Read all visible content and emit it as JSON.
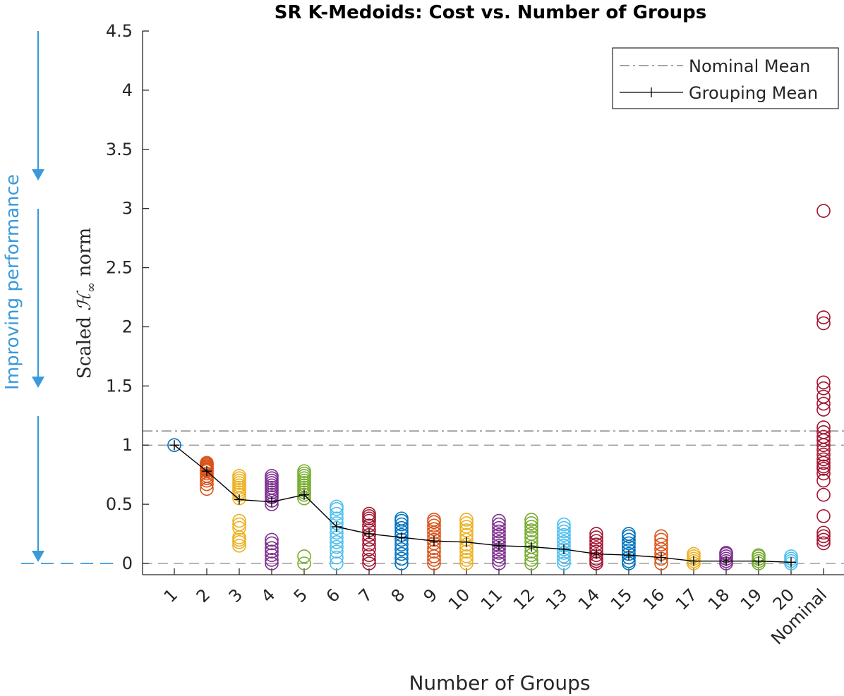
{
  "chart_data": {
    "type": "scatter",
    "title": "SR K-Medoids: Cost vs. Number of Groups",
    "xlabel": "Number of Groups",
    "ylabel_prefix": "Scaled",
    "ylabel_symbol": "ℋ",
    "ylabel_subscript": "∞",
    "ylabel_suffix": "norm",
    "categories": [
      "1",
      "2",
      "3",
      "4",
      "5",
      "6",
      "7",
      "8",
      "9",
      "10",
      "11",
      "12",
      "13",
      "14",
      "15",
      "16",
      "17",
      "18",
      "19",
      "20",
      "Nominal"
    ],
    "ylim": [
      -0.1,
      4.5
    ],
    "yticks": [
      0,
      0.5,
      1,
      1.5,
      2,
      2.5,
      3,
      3.5,
      4,
      4.5
    ],
    "ytick_labels": [
      "0",
      "0.5",
      "1",
      "1.5",
      "2",
      "2.5",
      "3",
      "3.5",
      "4",
      "4.5"
    ],
    "series_colors": [
      "#0072BD",
      "#D95319",
      "#EDB120",
      "#7E2F8E",
      "#77AC30",
      "#4DBEEE",
      "#A2142F"
    ],
    "scatter_points": [
      [
        1.0
      ],
      [
        0.63,
        0.67,
        0.7,
        0.72,
        0.74,
        0.76,
        0.78,
        0.79,
        0.8,
        0.81,
        0.82,
        0.83,
        0.84,
        0.85
      ],
      [
        0.15,
        0.18,
        0.2,
        0.22,
        0.3,
        0.33,
        0.36,
        0.55,
        0.58,
        0.6,
        0.62,
        0.64,
        0.66,
        0.68,
        0.7,
        0.72,
        0.74
      ],
      [
        0.0,
        0.03,
        0.07,
        0.1,
        0.13,
        0.17,
        0.2,
        0.5,
        0.53,
        0.56,
        0.58,
        0.6,
        0.62,
        0.64,
        0.66,
        0.68,
        0.7,
        0.72,
        0.74
      ],
      [
        0.0,
        0.06,
        0.55,
        0.58,
        0.6,
        0.62,
        0.64,
        0.66,
        0.68,
        0.7,
        0.72,
        0.74,
        0.76,
        0.78
      ],
      [
        0.0,
        0.05,
        0.1,
        0.14,
        0.18,
        0.22,
        0.26,
        0.3,
        0.34,
        0.38,
        0.42,
        0.46,
        0.48
      ],
      [
        0.0,
        0.03,
        0.07,
        0.12,
        0.16,
        0.2,
        0.24,
        0.28,
        0.32,
        0.36,
        0.38,
        0.4,
        0.42
      ],
      [
        0.0,
        0.04,
        0.08,
        0.12,
        0.16,
        0.2,
        0.24,
        0.27,
        0.3,
        0.33,
        0.36,
        0.38
      ],
      [
        0.0,
        0.03,
        0.06,
        0.1,
        0.13,
        0.17,
        0.2,
        0.23,
        0.26,
        0.29,
        0.32,
        0.35,
        0.37
      ],
      [
        0.0,
        0.03,
        0.06,
        0.1,
        0.13,
        0.16,
        0.2,
        0.24,
        0.28,
        0.31,
        0.34,
        0.37
      ],
      [
        0.0,
        0.03,
        0.06,
        0.09,
        0.12,
        0.15,
        0.18,
        0.21,
        0.24,
        0.27,
        0.3,
        0.33,
        0.36
      ],
      [
        0.0,
        0.03,
        0.07,
        0.1,
        0.14,
        0.18,
        0.22,
        0.25,
        0.28,
        0.31,
        0.34,
        0.37
      ],
      [
        0.0,
        0.03,
        0.06,
        0.09,
        0.12,
        0.15,
        0.18,
        0.21,
        0.24,
        0.27,
        0.3,
        0.33
      ],
      [
        0.0,
        0.02,
        0.04,
        0.07,
        0.1,
        0.13,
        0.16,
        0.19,
        0.22,
        0.25
      ],
      [
        0.0,
        0.02,
        0.05,
        0.08,
        0.11,
        0.14,
        0.17,
        0.2,
        0.23,
        0.25
      ],
      [
        0.0,
        0.04,
        0.08,
        0.12,
        0.16,
        0.2,
        0.23
      ],
      [
        0.0,
        0.02,
        0.04,
        0.06,
        0.08
      ],
      [
        0.0,
        0.02,
        0.04,
        0.06,
        0.08,
        0.09
      ],
      [
        0.0,
        0.02,
        0.04,
        0.06,
        0.07
      ],
      [
        0.0,
        0.02,
        0.04,
        0.06
      ],
      [
        0.17,
        0.2,
        0.23,
        0.26,
        0.4,
        0.58,
        0.7,
        0.76,
        0.8,
        0.82,
        0.85,
        0.88,
        0.92,
        0.96,
        1.0,
        1.04,
        1.07,
        1.11,
        1.15,
        1.3,
        1.35,
        1.41,
        1.48,
        1.53,
        2.03,
        2.08,
        2.98
      ]
    ],
    "series": [
      {
        "name": "Nominal Mean",
        "style": "dash-dot",
        "color": "#6e6e6e",
        "y": 1.12
      },
      {
        "name": "Grouping Mean",
        "style": "line-plus",
        "color": "#000000",
        "x": [
          1,
          2,
          3,
          4,
          5,
          6,
          7,
          8,
          9,
          10,
          11,
          12,
          13,
          14,
          15,
          16,
          17,
          18,
          19,
          20
        ],
        "values": [
          1.0,
          0.78,
          0.54,
          0.52,
          0.58,
          0.31,
          0.25,
          0.22,
          0.19,
          0.18,
          0.15,
          0.14,
          0.12,
          0.08,
          0.07,
          0.05,
          0.02,
          0.02,
          0.02,
          0.01
        ]
      }
    ],
    "reference_lines": [
      {
        "y": 1.0,
        "style": "dashed",
        "color": "#8c8c8c"
      },
      {
        "y": 0.0,
        "style": "dashed",
        "color": "#8c8c8c"
      }
    ],
    "legend": {
      "position": "top-right",
      "entries": [
        "Nominal Mean",
        "Grouping Mean"
      ]
    },
    "annotation": {
      "text": "Improving performance",
      "color": "#3A9AD9"
    }
  }
}
